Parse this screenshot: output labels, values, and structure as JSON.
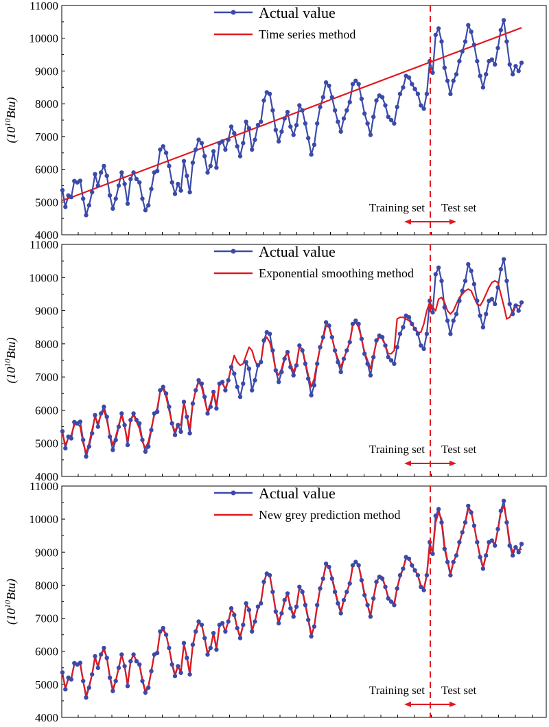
{
  "chart_data": [
    {
      "type": "line",
      "title": "",
      "ylabel_base": "10",
      "ylabel_exp": "10",
      "ylabel_unit": "Btu",
      "ylim": [
        4000,
        11000
      ],
      "yticks": [
        "4000",
        "5000",
        "6000",
        "7000",
        "8000",
        "9000",
        "10000",
        "11000"
      ],
      "legend_actual": "Actual value",
      "legend_method": "Time series method",
      "annotation_training": "Training set",
      "annotation_test": "Test set",
      "split_index": 125,
      "colors": {
        "actual": "#3b4aa8",
        "method": "#e0191f",
        "split": "#e0191f"
      },
      "series": [
        {
          "name": "Actual value",
          "role": "actual",
          "values": [
            5360,
            4850,
            5200,
            5150,
            5640,
            5600,
            5650,
            5100,
            4600,
            4900,
            5300,
            5850,
            5500,
            5900,
            6100,
            5800,
            5200,
            4800,
            5100,
            5500,
            5900,
            5550,
            4950,
            5700,
            5900,
            5700,
            5600,
            5100,
            4750,
            4900,
            5400,
            5900,
            5950,
            6600,
            6700,
            6500,
            6100,
            5600,
            5250,
            5550,
            5350,
            6250,
            5800,
            5300,
            6200,
            6600,
            6900,
            6800,
            6400,
            5900,
            6100,
            6550,
            6050,
            6800,
            6850,
            6600,
            6900,
            7300,
            7100,
            6700,
            6400,
            6800,
            7450,
            7250,
            6600,
            6900,
            7350,
            7450,
            8100,
            8350,
            8300,
            7800,
            7200,
            6850,
            7150,
            7550,
            7750,
            7300,
            7050,
            7350,
            7950,
            7800,
            7400,
            6950,
            6450,
            6750,
            7400,
            7900,
            8200,
            8650,
            8550,
            8200,
            7800,
            7450,
            7150,
            7550,
            7800,
            8050,
            8600,
            8700,
            8600,
            8150,
            7700,
            7400,
            7050,
            7600,
            8100,
            8250,
            8200,
            7950,
            7600,
            7500,
            7400,
            7900,
            8300,
            8500,
            8850,
            8800,
            8600,
            8450,
            8300,
            7950,
            7850,
            8300,
            9300,
            8950,
            10100,
            10300,
            9900,
            9100,
            8700,
            8300,
            8700,
            8900,
            9300,
            9600,
            9900,
            10400,
            10200,
            9800,
            9300,
            8850,
            8500,
            8900,
            9300,
            9350,
            9200,
            9700,
            10250,
            10550,
            9900,
            9200,
            8900,
            9150,
            9000,
            9250
          ]
        },
        {
          "name": "Time series method",
          "role": "method",
          "values": [
            5050,
            5150,
            5260,
            5370,
            5480,
            5590,
            5700,
            5810,
            5920,
            6030,
            6140,
            6250,
            6360,
            6470,
            6580,
            6690,
            6800,
            6910,
            7020,
            7130,
            7240,
            7350,
            7460,
            7570,
            7680,
            7790,
            7900,
            8010,
            8120,
            8230,
            8340,
            8450,
            8560,
            8670,
            8780,
            8890,
            9000,
            9110,
            9220,
            9330,
            9440,
            9550,
            9660,
            9770,
            9880,
            9990,
            10100,
            10210,
            10320
          ]
        }
      ]
    },
    {
      "type": "line",
      "title": "",
      "ylabel_base": "10",
      "ylabel_exp": "10",
      "ylabel_unit": "Btu",
      "ylim": [
        4000,
        11000
      ],
      "yticks": [
        "4000",
        "5000",
        "6000",
        "7000",
        "8000",
        "9000",
        "10000",
        "11000"
      ],
      "legend_actual": "Actual value",
      "legend_method": "Exponential smoothing method",
      "annotation_training": "Training set",
      "annotation_test": "Test set",
      "split_index": 125,
      "colors": {
        "actual": "#3b4aa8",
        "method": "#e0191f",
        "split": "#e0191f"
      },
      "series": [
        {
          "name": "Actual value",
          "role": "actual",
          "values": [
            5360,
            4850,
            5200,
            5150,
            5640,
            5600,
            5650,
            5100,
            4600,
            4900,
            5300,
            5850,
            5500,
            5900,
            6100,
            5800,
            5200,
            4800,
            5100,
            5500,
            5900,
            5550,
            4950,
            5700,
            5900,
            5700,
            5600,
            5100,
            4750,
            4900,
            5400,
            5900,
            5950,
            6600,
            6700,
            6500,
            6100,
            5600,
            5250,
            5550,
            5350,
            6250,
            5800,
            5300,
            6200,
            6600,
            6900,
            6800,
            6400,
            5900,
            6100,
            6550,
            6050,
            6800,
            6850,
            6600,
            6900,
            7300,
            7100,
            6700,
            6400,
            6800,
            7450,
            7250,
            6600,
            6900,
            7350,
            7450,
            8100,
            8350,
            8300,
            7800,
            7200,
            6850,
            7150,
            7550,
            7750,
            7300,
            7050,
            7350,
            7950,
            7800,
            7400,
            6950,
            6450,
            6750,
            7400,
            7900,
            8200,
            8650,
            8550,
            8200,
            7800,
            7450,
            7150,
            7550,
            7800,
            8050,
            8600,
            8700,
            8600,
            8150,
            7700,
            7400,
            7050,
            7600,
            8100,
            8250,
            8200,
            7950,
            7600,
            7500,
            7400,
            7900,
            8300,
            8500,
            8850,
            8800,
            8600,
            8450,
            8300,
            7950,
            7850,
            8300,
            9300,
            8950,
            10100,
            10300,
            9900,
            9100,
            8700,
            8300,
            8700,
            8900,
            9300,
            9600,
            9900,
            10400,
            10200,
            9800,
            9300,
            8850,
            8500,
            8900,
            9300,
            9350,
            9200,
            9700,
            10250,
            10550,
            9900,
            9200,
            8900,
            9150,
            9000,
            9250
          ]
        },
        {
          "name": "Exponential smoothing method",
          "role": "method",
          "values": [
            5300,
            4950,
            5150,
            5250,
            5550,
            5600,
            5500,
            5000,
            4700,
            5000,
            5400,
            5800,
            5600,
            5850,
            6000,
            5700,
            5250,
            4950,
            5200,
            5550,
            5850,
            5500,
            5050,
            5700,
            5850,
            5650,
            5450,
            5050,
            4850,
            5050,
            5450,
            5850,
            6050,
            6550,
            6650,
            6400,
            6000,
            5600,
            5350,
            5600,
            5550,
            6250,
            5800,
            5450,
            6200,
            6600,
            6850,
            6700,
            6300,
            5950,
            6200,
            6550,
            6150,
            6800,
            6800,
            6650,
            6900,
            7300,
            7650,
            7450,
            7350,
            7400,
            7650,
            7900,
            7800,
            7500,
            7300,
            7450,
            8050,
            8200,
            8050,
            7700,
            7200,
            7050,
            7250,
            7600,
            7750,
            7400,
            7150,
            7400,
            7900,
            7850,
            7450,
            7050,
            6700,
            6950,
            7450,
            7900,
            8150,
            8550,
            8500,
            8200,
            7800,
            7550,
            7300,
            7550,
            7800,
            8050,
            8550,
            8650,
            8500,
            8150,
            7750,
            7500,
            7250,
            7650,
            8050,
            8200,
            8150,
            7950,
            7700,
            7700,
            7800,
            8750,
            8800,
            8800,
            8750,
            8700,
            8600,
            8450,
            8350,
            8350,
            8600,
            9000,
            9250,
            9100,
            9000,
            9350,
            9400,
            9250,
            9000,
            8900,
            9000,
            9200,
            9400,
            9500,
            9600,
            9650,
            9600,
            9400,
            9200,
            9150,
            9300,
            9500,
            9700,
            9850,
            9900,
            9850,
            9500,
            9150,
            8750,
            8800,
            9000,
            9200,
            9150,
            9150
          ]
        }
      ]
    },
    {
      "type": "line",
      "title": "",
      "ylabel_base": "10",
      "ylabel_exp": "10",
      "ylabel_unit": "Btu",
      "ylim": [
        4000,
        11000
      ],
      "yticks": [
        "4000",
        "5000",
        "6000",
        "7000",
        "8000",
        "9000",
        "10000",
        "11000"
      ],
      "legend_actual": "Actual value",
      "legend_method": "New grey prediction method",
      "annotation_training": "Training set",
      "annotation_test": "Test set",
      "split_index": 125,
      "colors": {
        "actual": "#3b4aa8",
        "method": "#e0191f",
        "split": "#e0191f"
      },
      "series": [
        {
          "name": "Actual value",
          "role": "actual",
          "values": [
            5360,
            4850,
            5200,
            5150,
            5640,
            5600,
            5650,
            5100,
            4600,
            4900,
            5300,
            5850,
            5500,
            5900,
            6100,
            5800,
            5200,
            4800,
            5100,
            5500,
            5900,
            5550,
            4950,
            5700,
            5900,
            5700,
            5600,
            5100,
            4750,
            4900,
            5400,
            5900,
            5950,
            6600,
            6700,
            6500,
            6100,
            5600,
            5250,
            5550,
            5350,
            6250,
            5800,
            5300,
            6200,
            6600,
            6900,
            6800,
            6400,
            5900,
            6100,
            6550,
            6050,
            6800,
            6850,
            6600,
            6900,
            7300,
            7100,
            6700,
            6400,
            6800,
            7450,
            7250,
            6600,
            6900,
            7350,
            7450,
            8100,
            8350,
            8300,
            7800,
            7200,
            6850,
            7150,
            7550,
            7750,
            7300,
            7050,
            7350,
            7950,
            7800,
            7400,
            6950,
            6450,
            6750,
            7400,
            7900,
            8200,
            8650,
            8550,
            8200,
            7800,
            7450,
            7150,
            7550,
            7800,
            8050,
            8600,
            8700,
            8600,
            8150,
            7700,
            7400,
            7050,
            7600,
            8100,
            8250,
            8200,
            7950,
            7600,
            7500,
            7400,
            7900,
            8300,
            8500,
            8850,
            8800,
            8600,
            8450,
            8300,
            7950,
            7850,
            8300,
            9300,
            8950,
            10100,
            10300,
            9900,
            9100,
            8700,
            8300,
            8700,
            8900,
            9300,
            9600,
            9900,
            10400,
            10200,
            9800,
            9300,
            8850,
            8500,
            8900,
            9300,
            9350,
            9200,
            9700,
            10250,
            10550,
            9900,
            9200,
            8900,
            9150,
            9000,
            9250
          ]
        },
        {
          "name": "New grey prediction method",
          "role": "method",
          "values": [
            5300,
            4900,
            5150,
            5200,
            5600,
            5600,
            5600,
            5100,
            4650,
            4950,
            5300,
            5800,
            5550,
            5900,
            6050,
            5800,
            5250,
            4850,
            5100,
            5500,
            5900,
            5550,
            5000,
            5700,
            5900,
            5700,
            5600,
            5150,
            4800,
            4950,
            5400,
            5900,
            5950,
            6600,
            6650,
            6500,
            6100,
            5650,
            5300,
            5550,
            5400,
            6200,
            5850,
            5350,
            6150,
            6600,
            6850,
            6800,
            6400,
            5950,
            6100,
            6550,
            6100,
            6750,
            6850,
            6600,
            6900,
            7250,
            7150,
            6700,
            6450,
            6800,
            7400,
            7300,
            6650,
            6900,
            7300,
            7500,
            8050,
            8400,
            8300,
            7800,
            7250,
            6900,
            7150,
            7500,
            7750,
            7350,
            7100,
            7350,
            7900,
            7850,
            7450,
            7000,
            6500,
            6750,
            7350,
            7900,
            8200,
            8600,
            8550,
            8250,
            7850,
            7500,
            7200,
            7550,
            7800,
            8050,
            8550,
            8750,
            8600,
            8200,
            7750,
            7400,
            7100,
            7600,
            8050,
            8300,
            8250,
            7950,
            7650,
            7500,
            7450,
            7900,
            8250,
            8500,
            8800,
            8800,
            8600,
            8450,
            8300,
            8000,
            7900,
            8300,
            9200,
            9000,
            9900,
            10200,
            10000,
            9200,
            8750,
            8350,
            8700,
            8900,
            9250,
            9600,
            9900,
            10300,
            10250,
            9800,
            9300,
            8900,
            8550,
            8900,
            9250,
            9350,
            9250,
            9650,
            10200,
            10400,
            9950,
            9300,
            9000,
            9150,
            9050,
            9100
          ]
        }
      ]
    }
  ]
}
